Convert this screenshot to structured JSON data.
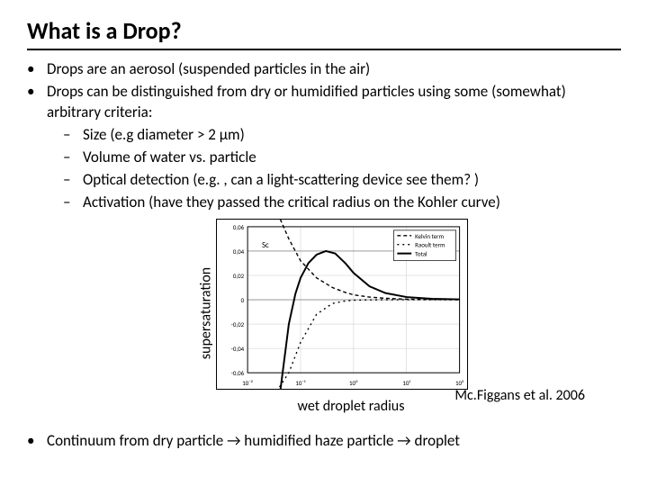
{
  "slide": {
    "title": "What is a Drop?",
    "bullets": [
      {
        "level": 1,
        "text": "Drops are an aerosol (suspended particles in the air)"
      },
      {
        "level": 1,
        "text": "Drops can be distinguished from dry or humidified particles using some (somewhat) arbitrary criteria:"
      },
      {
        "level": 2,
        "text": "Size (e.g diameter > 2 μm)"
      },
      {
        "level": 2,
        "text": "Volume of water vs. particle"
      },
      {
        "level": 2,
        "text": "Optical detection (e.g. , can a light-scattering device see them? )"
      },
      {
        "level": 2,
        "text": "Activation (have they passed the critical radius on the Kohler curve)"
      }
    ],
    "bottom_bullet": "Continuum from dry particle → humidified haze particle → droplet",
    "dot_glyph": "•",
    "dash_glyph": "–"
  },
  "figure": {
    "ylabel": "supersaturation",
    "xlabel": "wet droplet radius",
    "citation": "Mc.Figgans et al. 2006",
    "legend": {
      "items": [
        "Kelvin term",
        "Raoult term",
        "Total"
      ],
      "border_color": "#000000",
      "bg": "#ffffff"
    },
    "chart": {
      "type": "line",
      "xaxis": {
        "scale": "log",
        "xlim": [
          0.01,
          100
        ],
        "ticks": [
          0.01,
          0.1,
          1,
          10,
          100
        ],
        "tick_labels": [
          "10⁻²",
          "10⁻¹",
          "10⁰",
          "10¹",
          "10²"
        ],
        "label_fontsize": 7
      },
      "yaxis": {
        "scale": "linear",
        "ylim": [
          -0.06,
          0.06
        ],
        "ticks": [
          -0.06,
          -0.04,
          -0.02,
          0,
          0.02,
          0.04,
          0.06
        ],
        "tick_labels": [
          "-0,06",
          "-0,04",
          "-0,02",
          "0",
          "0,02",
          "0,04",
          "0,06"
        ],
        "label_fontsize": 7
      },
      "grid_color": "#c8c8c8",
      "sc_label": "Sc",
      "sc_label_color": "#000000",
      "series": [
        {
          "name": "Kelvin term",
          "color": "#000000",
          "dash": "4,3",
          "width": 1.4,
          "points": [
            [
              0.01,
              0.2
            ],
            [
              0.03,
              0.09
            ],
            [
              0.06,
              0.05
            ],
            [
              0.1,
              0.032
            ],
            [
              0.2,
              0.018
            ],
            [
              0.4,
              0.01
            ],
            [
              0.7,
              0.006
            ],
            [
              1,
              0.004
            ],
            [
              2,
              0.0022
            ],
            [
              4,
              0.0012
            ],
            [
              10,
              0.0005
            ],
            [
              30,
              0.00018
            ],
            [
              100,
              6e-05
            ]
          ]
        },
        {
          "name": "Raoult term",
          "color": "#000000",
          "dash": "2,4",
          "width": 1.4,
          "points": [
            [
              0.01,
              -0.3
            ],
            [
              0.03,
              -0.12
            ],
            [
              0.06,
              -0.06
            ],
            [
              0.1,
              -0.035
            ],
            [
              0.2,
              -0.012
            ],
            [
              0.4,
              -0.003
            ],
            [
              0.7,
              -0.001
            ],
            [
              1,
              -0.0004
            ],
            [
              2,
              -8e-05
            ],
            [
              4,
              -1e-05
            ],
            [
              10,
              0
            ],
            [
              30,
              0
            ],
            [
              100,
              0
            ]
          ]
        },
        {
          "name": "Total",
          "color": "#000000",
          "dash": "",
          "width": 2.0,
          "points": [
            [
              0.02,
              -0.3
            ],
            [
              0.04,
              -0.1
            ],
            [
              0.06,
              -0.02
            ],
            [
              0.08,
              0.005
            ],
            [
              0.1,
              0.018
            ],
            [
              0.14,
              0.03
            ],
            [
              0.2,
              0.037
            ],
            [
              0.3,
              0.04
            ],
            [
              0.45,
              0.038
            ],
            [
              0.7,
              0.03
            ],
            [
              1,
              0.022
            ],
            [
              2,
              0.011
            ],
            [
              4,
              0.0055
            ],
            [
              10,
              0.0022
            ],
            [
              30,
              0.0008
            ],
            [
              100,
              0.0003
            ]
          ]
        }
      ],
      "sc_line": {
        "y": 0.04,
        "color": "#000000",
        "width": 0.6,
        "opacity": 0.5
      }
    }
  }
}
